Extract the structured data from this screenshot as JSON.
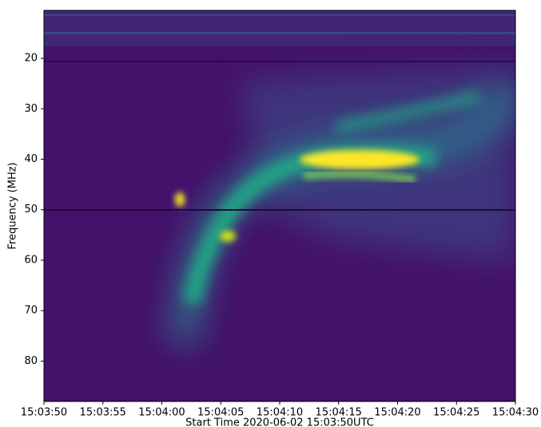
{
  "chart_data": {
    "type": "spectrogram",
    "xlabel": "Start Time 2020-06-02 15:03:50UTC",
    "ylabel": "Frequency (MHz)",
    "xlim": [
      54230,
      54270
    ],
    "xticks": [
      {
        "value": 54230,
        "label": "15:03:50"
      },
      {
        "value": 54235,
        "label": "15:03:55"
      },
      {
        "value": 54240,
        "label": "15:04:00"
      },
      {
        "value": 54245,
        "label": "15:04:05"
      },
      {
        "value": 54250,
        "label": "15:04:10"
      },
      {
        "value": 54255,
        "label": "15:04:15"
      },
      {
        "value": 54260,
        "label": "15:04:20"
      },
      {
        "value": 54265,
        "label": "15:04:25"
      },
      {
        "value": 54270,
        "label": "15:04:30"
      }
    ],
    "ylim": [
      88,
      10.5
    ],
    "yticks": [
      20,
      30,
      40,
      50,
      60,
      70,
      80
    ]
  }
}
